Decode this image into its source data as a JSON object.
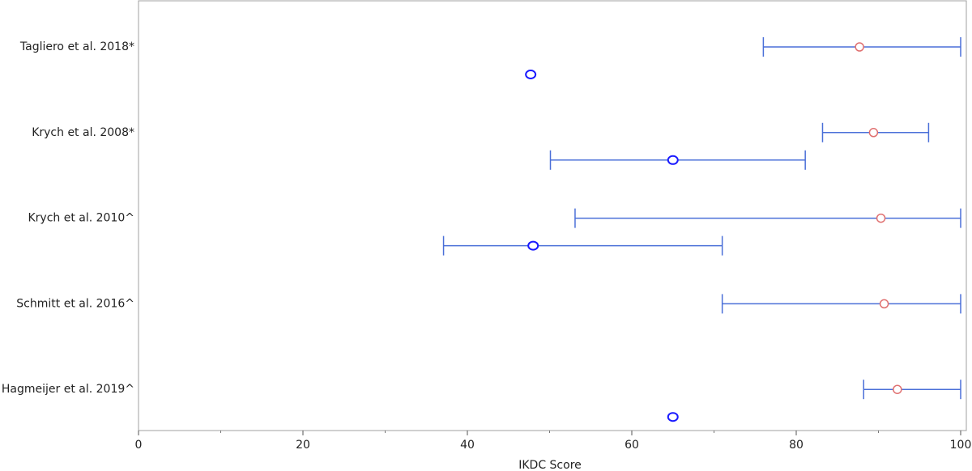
{
  "chart_data": {
    "type": "forest",
    "categories": [
      "Tagliero et al. 2018*",
      "Krych et al. 2008*",
      "Krych et al. 2010^",
      "Schmitt et al. 2016^",
      "Hagmeijer et al. 2019^"
    ],
    "series": [
      {
        "color": "#e07070",
        "values": [
          87.7,
          89.4,
          90.3,
          90.7,
          92.3
        ],
        "lower": [
          76,
          83.2,
          53.1,
          71,
          88.2
        ],
        "upper": [
          100,
          96.1,
          100,
          100,
          100
        ]
      },
      {
        "color": "#1a1aff",
        "values": [
          47.7,
          65,
          48,
          null,
          65
        ],
        "lower": [
          null,
          50.1,
          37.1,
          null,
          null
        ],
        "upper": [
          null,
          81.1,
          71,
          null,
          null
        ]
      }
    ],
    "errorbar_color": "#4a6fd8",
    "xlabel": "IKDC Score",
    "xlim": [
      0,
      100
    ],
    "xticks": [
      0,
      20,
      40,
      60,
      80,
      100
    ],
    "xminorticks": [
      10,
      30,
      50,
      70,
      90
    ]
  }
}
